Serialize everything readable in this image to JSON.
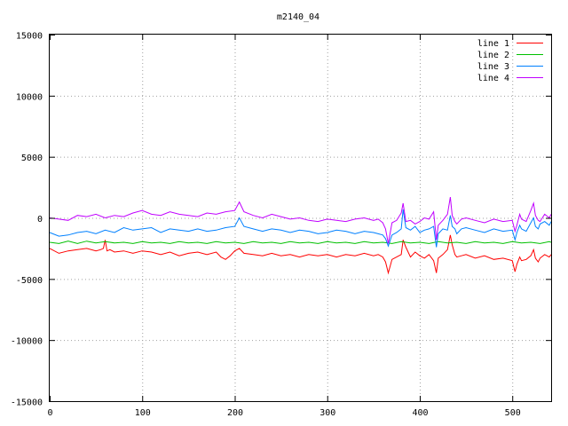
{
  "chart_data": {
    "type": "line",
    "title": "m2140_04",
    "xlabel": "",
    "ylabel": "",
    "xlim": [
      0,
      542
    ],
    "ylim": [
      -15000,
      15000
    ],
    "xticks": [
      0,
      100,
      200,
      300,
      400,
      500
    ],
    "yticks": [
      -15000,
      -10000,
      -5000,
      0,
      5000,
      10000,
      15000
    ],
    "grid": true,
    "legend_position": "top-right",
    "series": [
      {
        "name": "line 1",
        "color": "#ff0000",
        "x": [
          0,
          10,
          20,
          30,
          40,
          50,
          55,
          58,
          60,
          62,
          65,
          70,
          80,
          90,
          100,
          110,
          120,
          130,
          140,
          150,
          160,
          170,
          180,
          185,
          190,
          195,
          200,
          205,
          210,
          220,
          230,
          240,
          250,
          260,
          270,
          280,
          290,
          300,
          310,
          320,
          330,
          340,
          350,
          355,
          360,
          363,
          366,
          370,
          375,
          380,
          382,
          385,
          390,
          395,
          400,
          405,
          410,
          415,
          418,
          420,
          425,
          430,
          433,
          435,
          438,
          440,
          445,
          450,
          460,
          470,
          480,
          490,
          500,
          503,
          505,
          508,
          510,
          515,
          520,
          523,
          525,
          528,
          530,
          535,
          540,
          542
        ],
        "y": [
          -2500,
          -2900,
          -2700,
          -2600,
          -2500,
          -2700,
          -2600,
          -2500,
          -1800,
          -2700,
          -2600,
          -2800,
          -2700,
          -2900,
          -2700,
          -2800,
          -3000,
          -2800,
          -3100,
          -2900,
          -2800,
          -3000,
          -2800,
          -3200,
          -3400,
          -3100,
          -2700,
          -2500,
          -2900,
          -3000,
          -3100,
          -2900,
          -3100,
          -3000,
          -3200,
          -3000,
          -3100,
          -3000,
          -3200,
          -3000,
          -3100,
          -2900,
          -3100,
          -3000,
          -3200,
          -3600,
          -4500,
          -3400,
          -3200,
          -3000,
          -1800,
          -2400,
          -3200,
          -2800,
          -3100,
          -3300,
          -3000,
          -3500,
          -4500,
          -3300,
          -3000,
          -2600,
          -1400,
          -2200,
          -3000,
          -3200,
          -3100,
          -3000,
          -3300,
          -3100,
          -3400,
          -3300,
          -3500,
          -4400,
          -3800,
          -3200,
          -3500,
          -3400,
          -3100,
          -2600,
          -3300,
          -3600,
          -3300,
          -3000,
          -3200,
          -3000
        ]
      },
      {
        "name": "line 2",
        "color": "#00c000",
        "x": [
          0,
          10,
          20,
          30,
          40,
          50,
          60,
          70,
          80,
          90,
          100,
          110,
          120,
          130,
          140,
          150,
          160,
          170,
          180,
          190,
          200,
          210,
          220,
          230,
          240,
          250,
          260,
          270,
          280,
          290,
          300,
          310,
          320,
          330,
          340,
          350,
          360,
          370,
          380,
          390,
          400,
          410,
          420,
          430,
          440,
          450,
          460,
          470,
          480,
          490,
          500,
          510,
          520,
          530,
          540,
          542
        ],
        "y": [
          -2000,
          -2100,
          -1900,
          -2100,
          -1900,
          -2050,
          -1950,
          -2050,
          -2000,
          -2100,
          -1950,
          -2050,
          -2000,
          -2100,
          -1950,
          -2050,
          -2000,
          -2100,
          -1950,
          -2050,
          -2000,
          -2100,
          -1950,
          -2050,
          -2000,
          -2100,
          -1950,
          -2050,
          -2000,
          -2100,
          -1950,
          -2050,
          -2000,
          -2100,
          -1950,
          -2050,
          -2000,
          -2100,
          -1950,
          -2050,
          -2000,
          -2100,
          -1950,
          -2050,
          -2000,
          -2100,
          -1950,
          -2050,
          -2000,
          -2100,
          -1950,
          -2050,
          -2000,
          -2100,
          -1950,
          -2000
        ]
      },
      {
        "name": "line 3",
        "color": "#0080ff",
        "x": [
          0,
          10,
          20,
          30,
          40,
          50,
          60,
          70,
          80,
          90,
          100,
          110,
          120,
          130,
          140,
          150,
          160,
          170,
          180,
          190,
          200,
          205,
          210,
          220,
          230,
          240,
          250,
          260,
          270,
          280,
          290,
          300,
          310,
          320,
          330,
          340,
          350,
          355,
          360,
          363,
          366,
          370,
          375,
          380,
          382,
          385,
          390,
          395,
          400,
          405,
          410,
          415,
          418,
          420,
          425,
          430,
          433,
          435,
          438,
          440,
          445,
          450,
          460,
          470,
          480,
          490,
          500,
          503,
          505,
          508,
          510,
          515,
          520,
          523,
          525,
          528,
          530,
          535,
          540,
          542
        ],
        "y": [
          -1200,
          -1500,
          -1400,
          -1200,
          -1100,
          -1300,
          -1000,
          -1200,
          -800,
          -1000,
          -900,
          -800,
          -1200,
          -900,
          -1000,
          -1100,
          -900,
          -1100,
          -1000,
          -800,
          -700,
          0,
          -700,
          -900,
          -1100,
          -900,
          -1000,
          -1200,
          -1000,
          -1100,
          -1300,
          -1200,
          -1000,
          -1100,
          -1300,
          -1100,
          -1200,
          -1300,
          -1400,
          -1700,
          -2300,
          -1400,
          -1200,
          -900,
          700,
          -800,
          -1000,
          -700,
          -1200,
          -1000,
          -900,
          -700,
          -2400,
          -1300,
          -900,
          -1000,
          200,
          -700,
          -900,
          -1300,
          -900,
          -800,
          -1000,
          -1200,
          -900,
          -1100,
          -1000,
          -1800,
          -1200,
          -600,
          -900,
          -1100,
          -400,
          0,
          -700,
          -900,
          -500,
          -300,
          -600,
          -300
        ]
      },
      {
        "name": "line 4",
        "color": "#c000ff",
        "x": [
          0,
          10,
          20,
          30,
          40,
          50,
          60,
          70,
          80,
          90,
          100,
          110,
          120,
          130,
          140,
          150,
          160,
          170,
          180,
          190,
          200,
          205,
          210,
          220,
          230,
          240,
          250,
          260,
          270,
          280,
          290,
          300,
          310,
          320,
          330,
          340,
          350,
          355,
          360,
          363,
          366,
          370,
          375,
          380,
          382,
          385,
          390,
          395,
          400,
          405,
          410,
          415,
          418,
          420,
          425,
          430,
          433,
          435,
          438,
          440,
          445,
          450,
          460,
          470,
          480,
          490,
          500,
          503,
          505,
          508,
          510,
          515,
          520,
          523,
          525,
          528,
          530,
          535,
          540,
          542
        ],
        "y": [
          0,
          -100,
          -200,
          200,
          100,
          300,
          0,
          200,
          100,
          400,
          600,
          300,
          200,
          500,
          300,
          200,
          100,
          400,
          300,
          500,
          600,
          1300,
          500,
          200,
          0,
          300,
          100,
          -100,
          0,
          -200,
          -300,
          -100,
          -200,
          -300,
          -100,
          0,
          -200,
          -100,
          -400,
          -900,
          -2100,
          -400,
          -200,
          400,
          1200,
          -300,
          -200,
          -500,
          -300,
          0,
          -100,
          500,
          -1800,
          -600,
          -200,
          300,
          1700,
          200,
          -300,
          -500,
          -100,
          0,
          -200,
          -400,
          -100,
          -300,
          -200,
          -1100,
          -600,
          300,
          -100,
          -300,
          600,
          1200,
          200,
          -200,
          -300,
          300,
          0,
          300
        ]
      }
    ]
  }
}
